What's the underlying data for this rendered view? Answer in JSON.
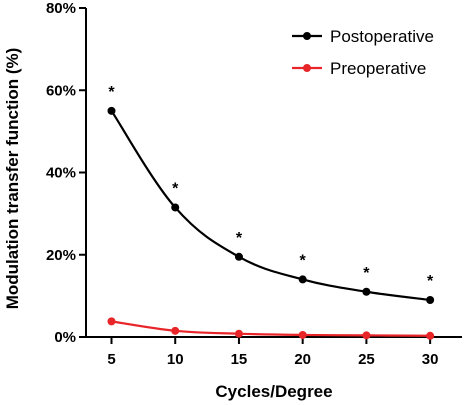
{
  "chart_data": {
    "type": "line",
    "title": "",
    "xlabel": "Cycles/Degree",
    "ylabel": "Modulation transfer function (%)",
    "x": [
      5,
      10,
      15,
      20,
      25,
      30
    ],
    "x_tick_labels": [
      "5",
      "10",
      "15",
      "20",
      "25",
      "30"
    ],
    "y_ticks": [
      0,
      20,
      40,
      60,
      80
    ],
    "y_tick_labels": [
      "0%",
      "20%",
      "40%",
      "60%",
      "80%"
    ],
    "xlim": [
      3,
      32.5
    ],
    "ylim": [
      0,
      80
    ],
    "grid": false,
    "legend_position": "top-right",
    "series": [
      {
        "name": "Postoperative",
        "color": "#000000",
        "values": [
          55,
          31.5,
          19.5,
          14,
          11,
          9
        ]
      },
      {
        "name": "Preoperative",
        "color": "#e8262a",
        "values": [
          3.8,
          1.5,
          0.8,
          0.5,
          0.4,
          0.3
        ]
      }
    ],
    "annotations": [
      {
        "x": 5,
        "y": 55,
        "text": "*"
      },
      {
        "x": 10,
        "y": 31.5,
        "text": "*"
      },
      {
        "x": 15,
        "y": 19.5,
        "text": "*"
      },
      {
        "x": 20,
        "y": 14,
        "text": "*"
      },
      {
        "x": 25,
        "y": 11,
        "text": "*"
      },
      {
        "x": 30,
        "y": 9,
        "text": "*"
      }
    ]
  }
}
